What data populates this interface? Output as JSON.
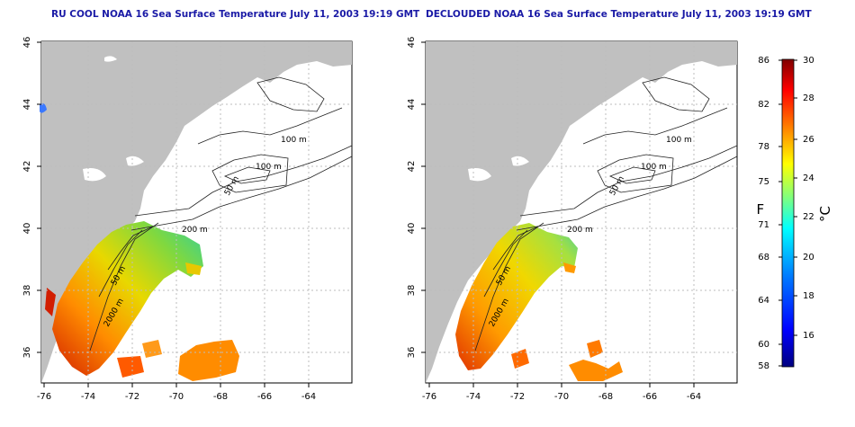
{
  "left_panel": {
    "title": "RU COOL NOAA 16 Sea Surface Temperature July 11, 2003 19:19 GMT",
    "x_ticks": [
      "-76",
      "-74",
      "-72",
      "-70",
      "-68",
      "-66",
      "-64"
    ],
    "y_ticks": [
      "46",
      "44",
      "42",
      "40",
      "38",
      "36"
    ],
    "contour_labels": [
      "100 m",
      "100 m",
      "50 m",
      "200 m",
      "50 m",
      "2000 m"
    ]
  },
  "right_panel": {
    "title": "DECLOUDED NOAA 16 Sea Surface Temperature July 11, 2003 19:19 GMT",
    "x_ticks": [
      "-76",
      "-74",
      "-72",
      "-70",
      "-68",
      "-66",
      "-64"
    ],
    "y_ticks": [
      "46",
      "44",
      "42",
      "40",
      "38",
      "36"
    ],
    "contour_labels": [
      "100 m",
      "100 m",
      "50 m",
      "200 m",
      "50 m",
      "2000 m"
    ]
  },
  "colorbar": {
    "fahrenheit_ticks": [
      "86",
      "82",
      "78",
      "75",
      "71",
      "68",
      "64",
      "60",
      "58"
    ],
    "celsius_ticks": [
      "30",
      "28",
      "26",
      "24",
      "22",
      "20",
      "18",
      "16"
    ],
    "fahrenheit_label": "°F",
    "celsius_label": "°C",
    "colors": [
      "#00007f",
      "#0000ff",
      "#007fff",
      "#00ffff",
      "#7fff7f",
      "#ffff00",
      "#ff7f00",
      "#ff0000",
      "#7f0000"
    ]
  },
  "colors": {
    "land": "#c0c0c0",
    "ocean": "#ffffff",
    "title": "#1a1aa6",
    "grid": "#bdbdbd"
  }
}
